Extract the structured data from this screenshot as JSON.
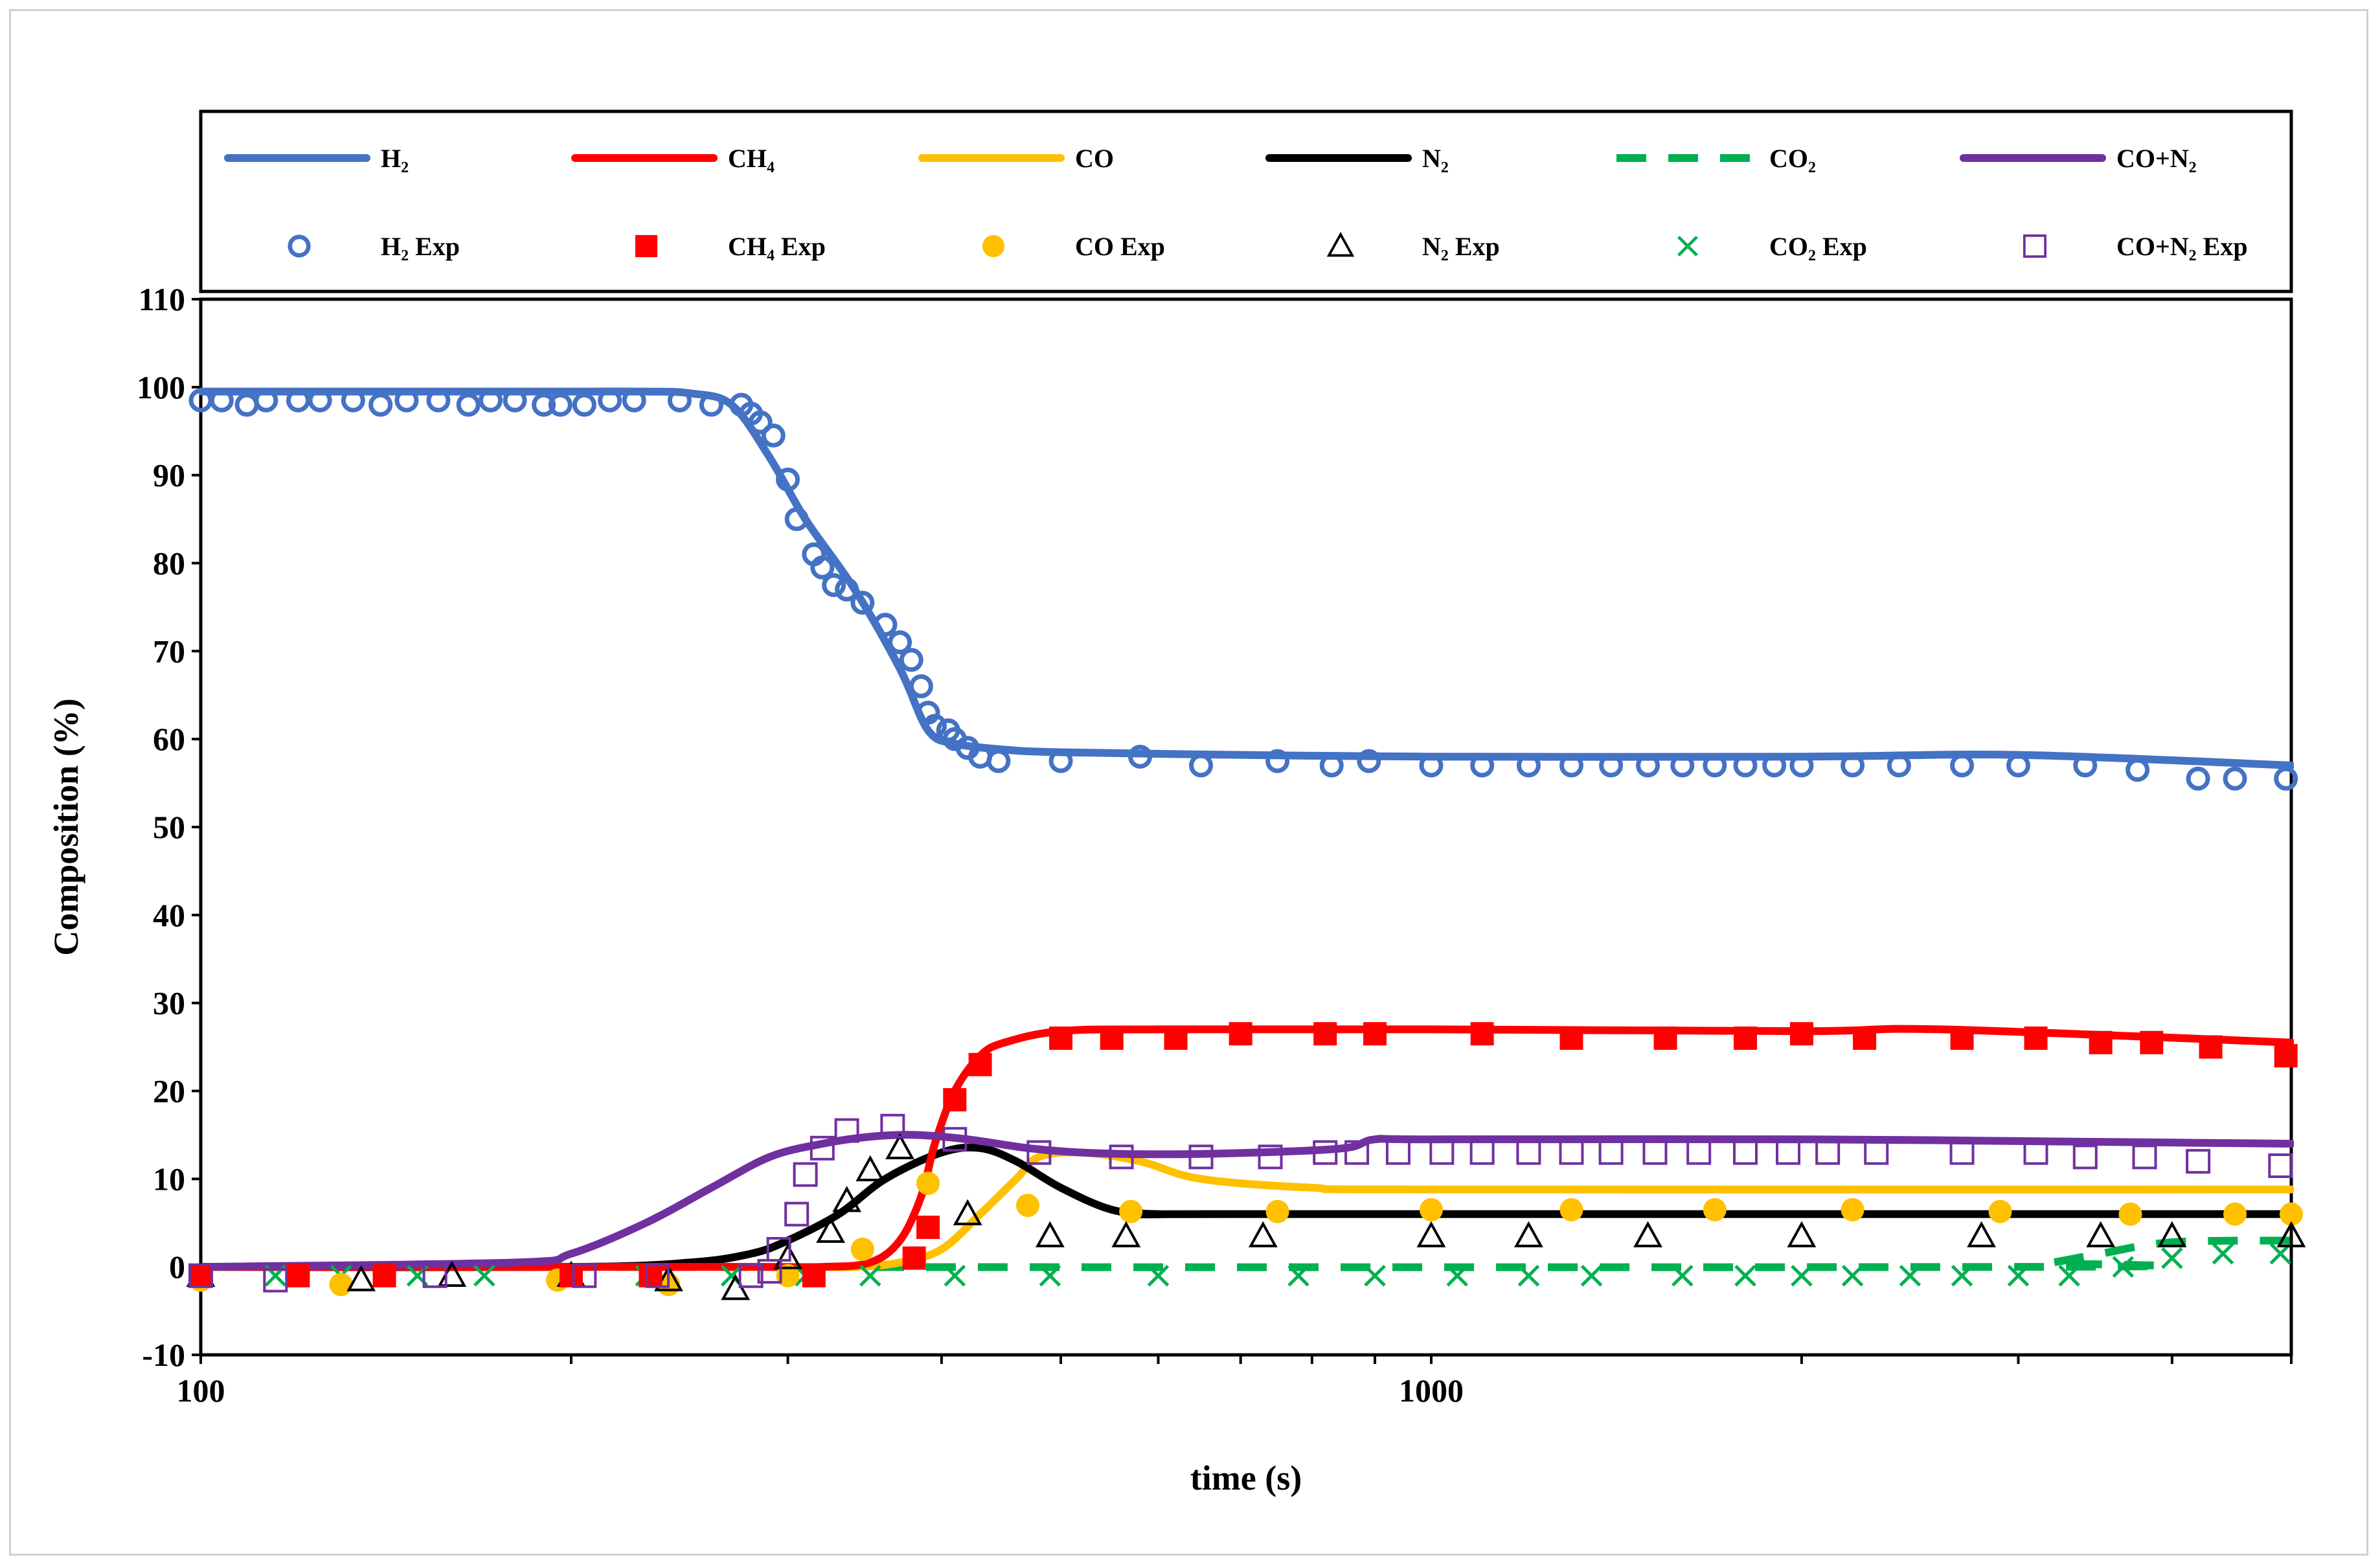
{
  "chart_data": {
    "type": "line",
    "title": "",
    "xlabel": "time (s)",
    "ylabel": "Composition (%)",
    "xscale": "log",
    "xlim": [
      100,
      5000
    ],
    "ylim": [
      -10,
      110
    ],
    "x_ticks": [
      {
        "value": 100,
        "label": "100"
      },
      {
        "value": 1000,
        "label": "1000"
      }
    ],
    "y_ticks": [
      -10,
      0,
      10,
      20,
      30,
      40,
      50,
      60,
      70,
      80,
      90,
      100,
      110
    ],
    "y_tick_labels": [
      "-10",
      "0",
      "10",
      "20",
      "30",
      "40",
      "50",
      "60",
      "70",
      "80",
      "90",
      "100",
      "110"
    ],
    "legend_position": "top",
    "series": [
      {
        "name": "H₂",
        "kind": "line",
        "color": "#4472C4",
        "dash": "solid",
        "x": [
          100,
          150,
          200,
          230,
          250,
          270,
          290,
          310,
          340,
          370,
          390,
          410,
          450,
          500,
          700,
          1000,
          2000,
          3000,
          5000
        ],
        "y": [
          99.5,
          99.5,
          99.5,
          99.5,
          99.3,
          98,
          92,
          85,
          77,
          68,
          61,
          59.5,
          58.8,
          58.5,
          58.2,
          58,
          58,
          58.2,
          57
        ]
      },
      {
        "name": "CH₄",
        "kind": "line",
        "color": "#FF0000",
        "dash": "solid",
        "x": [
          100,
          200,
          280,
          320,
          350,
          370,
          385,
          395,
          410,
          430,
          450,
          500,
          600,
          1000,
          2000,
          2600,
          5000
        ],
        "y": [
          0,
          0,
          0,
          0,
          0.5,
          3,
          8,
          14,
          20,
          24,
          25.5,
          26.8,
          27,
          27,
          26.8,
          27,
          25.5
        ]
      },
      {
        "name": "CO",
        "kind": "line",
        "color": "#FFC000",
        "dash": "solid",
        "x": [
          100,
          250,
          300,
          340,
          370,
          400,
          430,
          460,
          480,
          520,
          580,
          650,
          800,
          1000,
          5000
        ],
        "y": [
          0,
          0,
          0,
          0,
          0.5,
          2,
          6,
          10,
          12.5,
          13,
          12,
          10,
          9,
          8.8,
          8.8
        ]
      },
      {
        "name": "N₂",
        "kind": "line",
        "color": "#000000",
        "dash": "solid",
        "x": [
          100,
          200,
          250,
          280,
          300,
          330,
          360,
          400,
          430,
          460,
          500,
          550,
          600,
          700,
          5000
        ],
        "y": [
          0,
          0,
          0.5,
          1.5,
          3,
          6,
          10,
          13,
          13.5,
          12,
          9,
          6.5,
          6,
          6,
          6
        ]
      },
      {
        "name": "CO₂",
        "kind": "line",
        "color": "#00B050",
        "dash": "dashed",
        "x": [
          100,
          3000,
          3200,
          3500,
          4000,
          5000
        ],
        "y": [
          0,
          0,
          0.5,
          1.5,
          2.8,
          3
        ]
      },
      {
        "name": "CO+N₂",
        "kind": "line",
        "color": "#7030A0",
        "dash": "solid",
        "x": [
          100,
          180,
          200,
          230,
          260,
          290,
          320,
          350,
          380,
          420,
          470,
          520,
          600,
          720,
          850,
          900,
          1000,
          2000,
          3000,
          5000
        ],
        "y": [
          0,
          0.5,
          1.5,
          5,
          9,
          12.5,
          14,
          14.8,
          15,
          14.5,
          13.5,
          13,
          12.8,
          13,
          13.5,
          14.5,
          14.5,
          14.5,
          14.3,
          14
        ]
      },
      {
        "name": "H₂ Exp",
        "kind": "marker",
        "marker": "open-circle",
        "color": "#4472C4",
        "x": [
          100,
          104,
          109,
          113,
          120,
          125,
          133,
          140,
          147,
          156,
          165,
          172,
          180,
          190,
          196,
          205,
          215,
          225,
          245,
          260,
          275,
          280,
          285,
          292,
          300,
          305,
          315,
          320,
          327,
          335,
          345,
          360,
          370,
          378,
          385,
          390,
          395,
          405,
          410,
          420,
          430,
          445,
          500,
          580,
          650,
          750,
          830,
          890,
          1000,
          1100,
          1200,
          1300,
          1400,
          1500,
          1600,
          1700,
          1800,
          1900,
          2000,
          2200,
          2400,
          2700,
          3000,
          3400,
          3750,
          4200,
          4500,
          4950
        ],
        "y": [
          98.5,
          98.5,
          98,
          98.5,
          98.5,
          98.5,
          98.5,
          98,
          98.5,
          98.5,
          98,
          98.5,
          98.5,
          98,
          98,
          98,
          98.5,
          98.5,
          98.5,
          98,
          98,
          97,
          96,
          94.5,
          89.5,
          85,
          81,
          79.5,
          77.5,
          77,
          75.5,
          73,
          71,
          69,
          66,
          63,
          61.5,
          61,
          60,
          59,
          58,
          57.5,
          57.5,
          58,
          57,
          57.5,
          57,
          57.5,
          57,
          57,
          57,
          57,
          57,
          57,
          57,
          57,
          57,
          57,
          57,
          57,
          57,
          57,
          57,
          57,
          56.5,
          55.5,
          55.5,
          55.5
        ]
      },
      {
        "name": "CH₄ Exp",
        "kind": "marker",
        "marker": "filled-square",
        "color": "#FF0000",
        "x": [
          100,
          120,
          141,
          200,
          232,
          315,
          380,
          390,
          410,
          430,
          500,
          550,
          620,
          700,
          820,
          900,
          1100,
          1300,
          1550,
          1800,
          2000,
          2250,
          2700,
          3100,
          3500,
          3850,
          4300,
          4950
        ],
        "y": [
          -1,
          -1,
          -1,
          -1,
          -1,
          -1,
          1,
          4.5,
          19,
          23,
          26,
          26,
          26,
          26.5,
          26.5,
          26.5,
          26.5,
          26,
          26,
          26,
          26.5,
          26,
          26,
          26,
          25.5,
          25.5,
          25,
          24
        ]
      },
      {
        "name": "CO Exp",
        "kind": "marker",
        "marker": "filled-circle",
        "color": "#FFC000",
        "x": [
          100,
          130,
          195,
          240,
          300,
          345,
          390,
          470,
          570,
          750,
          1000,
          1300,
          1700,
          2200,
          2900,
          3700,
          4500,
          5000
        ],
        "y": [
          -1.5,
          -2,
          -1.5,
          -2,
          -1,
          2,
          9.5,
          7,
          6.3,
          6.3,
          6.5,
          6.5,
          6.5,
          6.5,
          6.3,
          6,
          6,
          6
        ]
      },
      {
        "name": "N₂ Exp",
        "kind": "marker",
        "marker": "open-triangle",
        "color": "#000000",
        "x": [
          100,
          135,
          160,
          200,
          240,
          272,
          300,
          325,
          335,
          350,
          370,
          420,
          490,
          565,
          730,
          1000,
          1200,
          1500,
          2000,
          2800,
          3500,
          4000,
          5000
        ],
        "y": [
          -1,
          -1.5,
          -1,
          -1,
          -1.5,
          -2.5,
          1,
          4,
          7.5,
          11,
          13.5,
          6,
          3.5,
          3.5,
          3.5,
          3.5,
          3.5,
          3.5,
          3.5,
          3.5,
          3.5,
          3.5,
          3.5
        ]
      },
      {
        "name": "CO₂ Exp",
        "kind": "marker",
        "marker": "x",
        "color": "#00B050",
        "x": [
          100,
          115,
          130,
          150,
          170,
          200,
          230,
          270,
          310,
          350,
          410,
          490,
          600,
          780,
          900,
          1050,
          1200,
          1350,
          1600,
          1800,
          2000,
          2200,
          2450,
          2700,
          3000,
          3300,
          3650,
          4000,
          4400,
          4900
        ],
        "y": [
          -1,
          -1,
          -1,
          -1,
          -1,
          -1,
          -1,
          -1,
          -1,
          -1,
          -1,
          -1,
          -1,
          -1,
          -1,
          -1,
          -1,
          -1,
          -1,
          -1,
          -1,
          -1,
          -1,
          -1,
          -1,
          -1,
          0,
          1,
          1.5,
          1.5
        ]
      },
      {
        "name": "CO+N₂ Exp",
        "kind": "marker",
        "marker": "open-square",
        "color": "#7030A0",
        "x": [
          100,
          115,
          155,
          205,
          235,
          280,
          290,
          295,
          305,
          310,
          320,
          335,
          365,
          410,
          480,
          560,
          650,
          740,
          820,
          870,
          940,
          1020,
          1100,
          1200,
          1300,
          1400,
          1520,
          1650,
          1800,
          1950,
          2100,
          2300,
          2700,
          3100,
          3400,
          3800,
          4200,
          4900
        ],
        "y": [
          -1,
          -1.5,
          -1,
          -1,
          -1,
          -1,
          -0.5,
          2,
          6,
          10.5,
          13.5,
          15.5,
          16,
          14.5,
          13,
          12.5,
          12.5,
          12.5,
          13,
          13,
          13,
          13,
          13,
          13,
          13,
          13,
          13,
          13,
          13,
          13,
          13,
          13,
          13,
          13,
          12.5,
          12.5,
          12,
          11.5
        ]
      }
    ]
  },
  "legend": {
    "row1": [
      "H₂",
      "CH₄",
      "CO",
      "N₂",
      "CO₂",
      "CO+N₂"
    ],
    "row2": [
      "H₂ Exp",
      "CH₄ Exp",
      "CO Exp",
      "N₂ Exp",
      "CO₂ Exp",
      "CO+N₂ Exp"
    ]
  }
}
